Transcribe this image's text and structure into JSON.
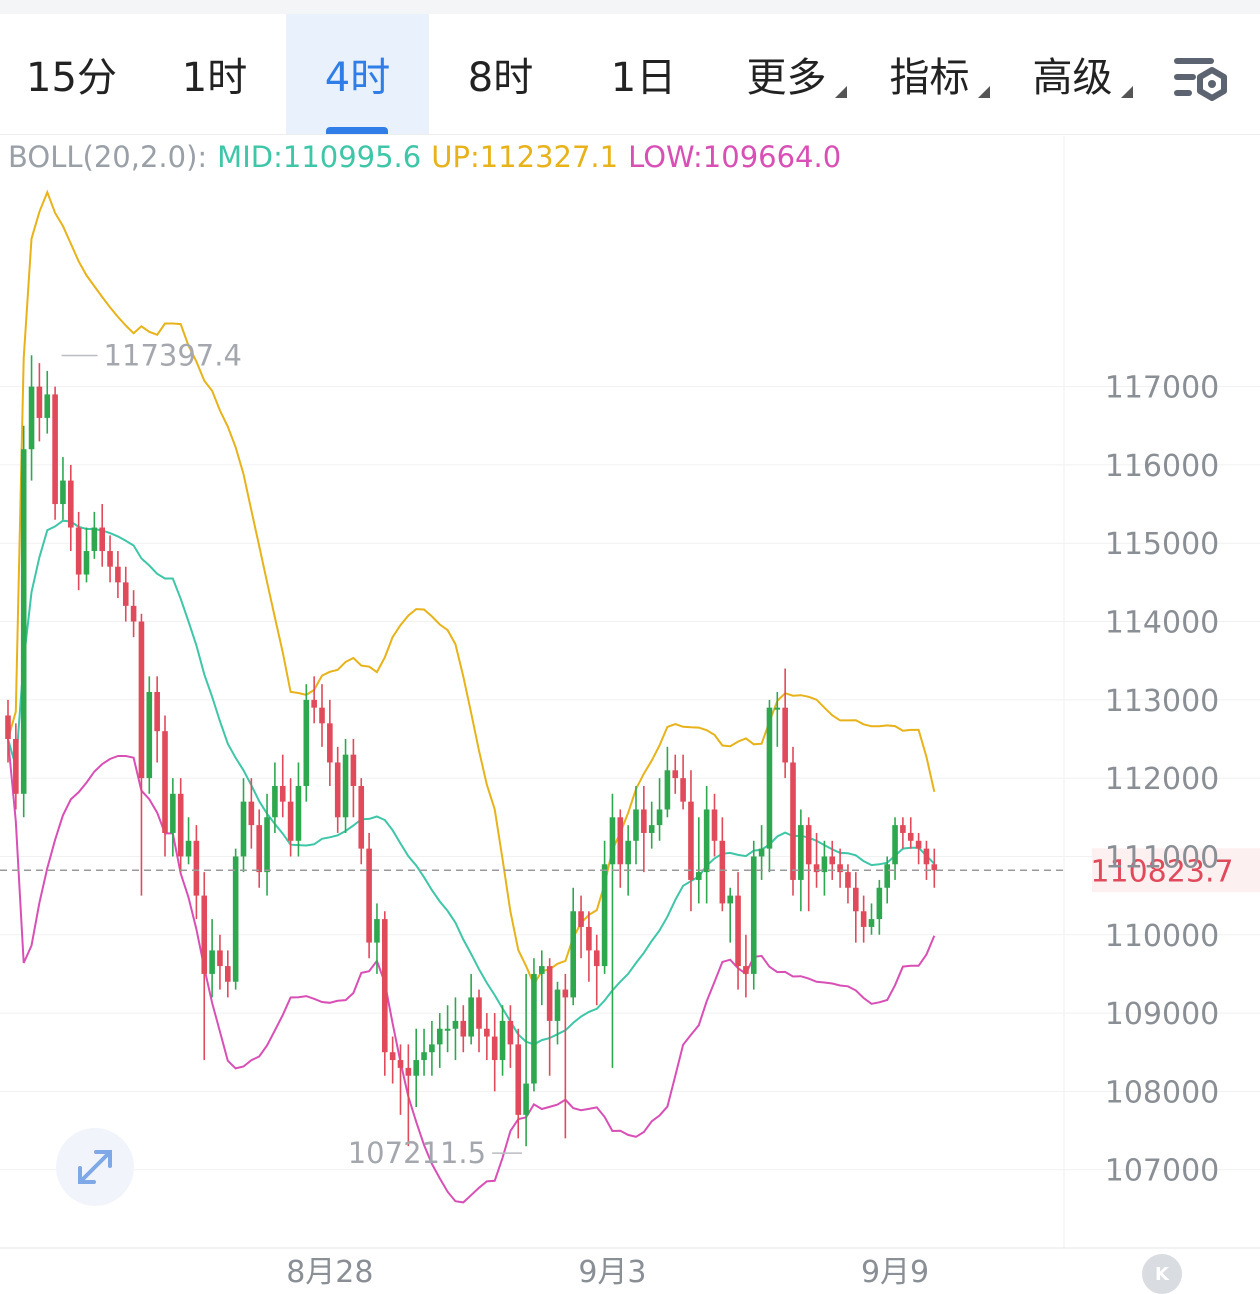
{
  "tabs": [
    {
      "label": "15分",
      "active": false
    },
    {
      "label": "1时",
      "active": false
    },
    {
      "label": "4时",
      "active": true
    },
    {
      "label": "8时",
      "active": false
    },
    {
      "label": "1日",
      "active": false
    },
    {
      "label": "更多",
      "active": false,
      "dropdown": true
    },
    {
      "label": "指标",
      "active": false,
      "dropdown": true
    },
    {
      "label": "高级",
      "active": false,
      "dropdown": true
    }
  ],
  "settings_icon": "chart-settings-icon",
  "indicator": {
    "name": "BOLL(20,2.0):",
    "mid": "MID:110995.6",
    "up": "UP:112327.1",
    "low": "LOW:109664.0"
  },
  "colors": {
    "up_candle": "#2ea84f",
    "down_candle": "#e04a5a",
    "mid": "#3fc6a8",
    "upper": "#e8b21a",
    "lower": "#d84fb6",
    "accent": "#2f7de6",
    "price_tag": "#e04a5a"
  },
  "expand_icon": "expand-arrows-icon",
  "k_badge": "K",
  "chart_data": {
    "type": "candlestick",
    "y_ticks": [
      117000,
      116000,
      115000,
      114000,
      113000,
      112000,
      111000,
      110000,
      109000,
      108000,
      107000
    ],
    "ylim": [
      106000,
      120200
    ],
    "x_labels": [
      {
        "label": "8月28",
        "index": 41
      },
      {
        "label": "9月3",
        "index": 77
      },
      {
        "label": "9月9",
        "index": 113
      }
    ],
    "current_price": "110823.7",
    "high_marker": {
      "label": "117397.4",
      "index": 3,
      "value": 117397.4
    },
    "low_marker": {
      "label": "107211.5",
      "index": 66,
      "value": 107211.5
    },
    "candles": [
      [
        112800,
        112500,
        113000,
        112200
      ],
      [
        112500,
        111800,
        112700,
        111600
      ],
      [
        111800,
        116200,
        116500,
        111500
      ],
      [
        116200,
        117000,
        117400,
        115800
      ],
      [
        117000,
        116600,
        117300,
        116300
      ],
      [
        116600,
        116900,
        117200,
        116400
      ],
      [
        116900,
        115500,
        117000,
        115300
      ],
      [
        115500,
        115800,
        116100,
        115300
      ],
      [
        115800,
        115200,
        116000,
        114900
      ],
      [
        115200,
        114600,
        115400,
        114400
      ],
      [
        114600,
        114900,
        115200,
        114500
      ],
      [
        114900,
        115200,
        115400,
        114800
      ],
      [
        115200,
        114900,
        115500,
        114700
      ],
      [
        114900,
        114700,
        115100,
        114500
      ],
      [
        114700,
        114500,
        114900,
        114300
      ],
      [
        114500,
        114200,
        114700,
        114000
      ],
      [
        114200,
        114000,
        114400,
        113800
      ],
      [
        114000,
        112000,
        114100,
        110500
      ],
      [
        112000,
        113100,
        113300,
        111800
      ],
      [
        113100,
        112600,
        113300,
        112200
      ],
      [
        112600,
        111300,
        112800,
        111000
      ],
      [
        111300,
        111800,
        112000,
        111000
      ],
      [
        111800,
        111000,
        112000,
        110800
      ],
      [
        111000,
        111200,
        111500,
        110900
      ],
      [
        111200,
        110500,
        111400,
        110200
      ],
      [
        110500,
        109500,
        110800,
        108400
      ],
      [
        109500,
        109800,
        110200,
        109200
      ],
      [
        109800,
        109600,
        110000,
        109300
      ],
      [
        109600,
        109400,
        109800,
        109200
      ],
      [
        109400,
        111000,
        111100,
        109300
      ],
      [
        111000,
        111700,
        112000,
        110800
      ],
      [
        111700,
        111400,
        112000,
        111100
      ],
      [
        111400,
        110800,
        111600,
        110600
      ],
      [
        110800,
        111500,
        111800,
        110500
      ],
      [
        111500,
        111900,
        112200,
        111300
      ],
      [
        111900,
        111700,
        112300,
        111500
      ],
      [
        111700,
        111200,
        112000,
        111000
      ],
      [
        111200,
        111900,
        112200,
        111000
      ],
      [
        111900,
        113000,
        113200,
        111700
      ],
      [
        113000,
        112900,
        113300,
        112700
      ],
      [
        112900,
        112700,
        113200,
        112400
      ],
      [
        112700,
        112200,
        113000,
        111900
      ],
      [
        112200,
        111500,
        112400,
        111300
      ],
      [
        111500,
        112300,
        112500,
        111300
      ],
      [
        112300,
        111900,
        112500,
        111500
      ],
      [
        111900,
        111100,
        112000,
        110900
      ],
      [
        111100,
        109900,
        111300,
        109700
      ],
      [
        109900,
        110200,
        110400,
        109500
      ],
      [
        110200,
        108500,
        110300,
        108200
      ],
      [
        108500,
        108400,
        108700,
        108100
      ],
      [
        108400,
        108300,
        108600,
        107700
      ],
      [
        108300,
        108200,
        108600,
        107300
      ],
      [
        108200,
        108400,
        108800,
        107800
      ],
      [
        108400,
        108500,
        108800,
        108200
      ],
      [
        108500,
        108600,
        108900,
        108200
      ],
      [
        108600,
        108800,
        109000,
        108300
      ],
      [
        108800,
        108800,
        109100,
        108500
      ],
      [
        108800,
        108900,
        109200,
        108400
      ],
      [
        108900,
        108700,
        109100,
        108500
      ],
      [
        108700,
        109200,
        109500,
        108600
      ],
      [
        109200,
        108800,
        109300,
        108500
      ],
      [
        108800,
        108700,
        109000,
        108400
      ],
      [
        108700,
        108400,
        109000,
        108000
      ],
      [
        108400,
        108900,
        109100,
        108200
      ],
      [
        108900,
        108600,
        109100,
        108300
      ],
      [
        108600,
        107700,
        108800,
        107400
      ],
      [
        107700,
        108100,
        109500,
        107300
      ],
      [
        108100,
        109500,
        109700,
        108000
      ],
      [
        109500,
        109600,
        109800,
        109100
      ],
      [
        109600,
        108900,
        109700,
        108200
      ],
      [
        108900,
        109300,
        109400,
        108600
      ],
      [
        109300,
        109200,
        109500,
        107400
      ],
      [
        109200,
        110300,
        110600,
        109100
      ],
      [
        110300,
        110100,
        110500,
        109700
      ],
      [
        110100,
        109800,
        110300,
        109400
      ],
      [
        109800,
        109600,
        110000,
        109100
      ],
      [
        109600,
        110900,
        111200,
        109500
      ],
      [
        110900,
        111500,
        111800,
        108300
      ],
      [
        111500,
        110900,
        111600,
        110600
      ],
      [
        110900,
        111200,
        111400,
        110500
      ],
      [
        111200,
        111600,
        111900,
        110900
      ],
      [
        111600,
        111300,
        111900,
        110800
      ],
      [
        111300,
        111400,
        111700,
        111100
      ],
      [
        111400,
        111600,
        112000,
        111200
      ],
      [
        111600,
        112100,
        112400,
        111500
      ],
      [
        112100,
        112000,
        112300,
        111800
      ],
      [
        112000,
        111700,
        112300,
        111600
      ],
      [
        111700,
        110700,
        112100,
        110300
      ],
      [
        110700,
        110800,
        111500,
        110400
      ],
      [
        110800,
        111600,
        111900,
        110400
      ],
      [
        111600,
        111200,
        111800,
        111000
      ],
      [
        111200,
        110400,
        111500,
        110300
      ],
      [
        110400,
        110500,
        110600,
        109900
      ],
      [
        110500,
        109600,
        110800,
        109300
      ],
      [
        109600,
        109500,
        110000,
        109200
      ],
      [
        109500,
        111000,
        111200,
        109300
      ],
      [
        111000,
        111100,
        111400,
        110700
      ],
      [
        111100,
        112900,
        113000,
        110800
      ],
      [
        112900,
        112900,
        113100,
        112400
      ],
      [
        112900,
        112200,
        113400,
        112000
      ],
      [
        112200,
        110700,
        112400,
        110500
      ],
      [
        110700,
        111400,
        111600,
        110300
      ],
      [
        111400,
        110900,
        111500,
        110300
      ],
      [
        110900,
        110800,
        111300,
        110600
      ],
      [
        110800,
        111000,
        111200,
        110500
      ],
      [
        111000,
        110900,
        111200,
        110700
      ],
      [
        110900,
        110800,
        111100,
        110600
      ],
      [
        110800,
        110600,
        110900,
        110400
      ],
      [
        110600,
        110300,
        110800,
        109900
      ],
      [
        110300,
        110100,
        110500,
        109900
      ],
      [
        110100,
        110200,
        110400,
        110000
      ],
      [
        110200,
        110600,
        110700,
        110000
      ],
      [
        110600,
        110900,
        111000,
        110400
      ],
      [
        110900,
        111400,
        111500,
        110700
      ],
      [
        111400,
        111300,
        111500,
        111100
      ],
      [
        111300,
        111200,
        111500,
        111100
      ],
      [
        111200,
        111100,
        111300,
        110900
      ],
      [
        111100,
        110900,
        111200,
        110700
      ],
      [
        110900,
        110823.7,
        111100,
        110600
      ]
    ],
    "boll_mid": [
      [
        0,
        113700
      ],
      [
        6,
        113800
      ],
      [
        18,
        114300
      ],
      [
        35,
        114500
      ],
      [
        40,
        114000
      ],
      [
        52,
        112700
      ],
      [
        64,
        111700
      ],
      [
        71,
        111200
      ],
      [
        82,
        111200
      ],
      [
        92,
        110800
      ],
      [
        100,
        110000
      ],
      [
        110,
        108900
      ],
      [
        116,
        108700
      ],
      [
        119,
        108700
      ],
      [
        124,
        109400
      ],
      [
        132,
        110000
      ],
      [
        140,
        110600
      ],
      [
        152,
        111300
      ],
      [
        164,
        111100
      ],
      [
        171,
        111100
      ],
      [
        178,
        110800
      ],
      [
        191,
        110900
      ],
      [
        200,
        111200
      ],
      [
        203,
        111000
      ]
    ]
  }
}
